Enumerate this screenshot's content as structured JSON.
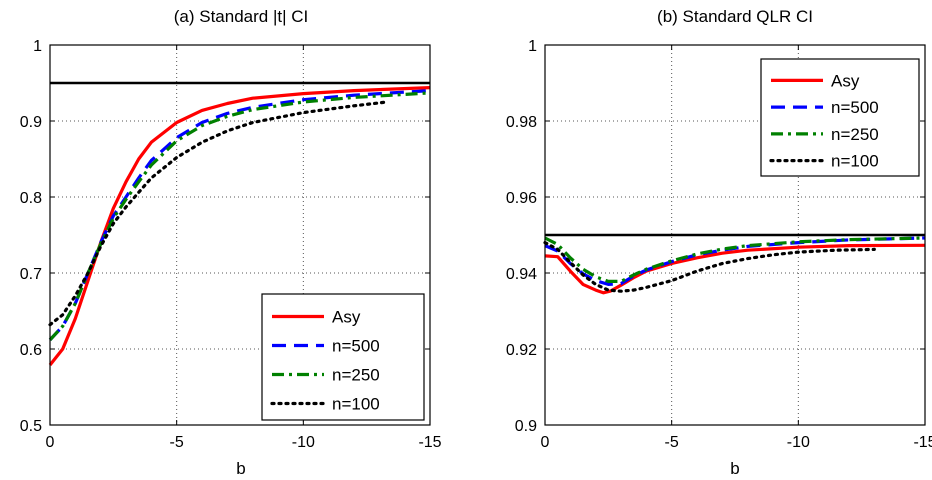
{
  "chart_data": [
    {
      "type": "line",
      "title": "(a) Standard |t| CI",
      "xlabel": "b",
      "ylabel": "",
      "xlim": [
        0,
        -15
      ],
      "ylim": [
        0.5,
        1
      ],
      "xticks": [
        0,
        -5,
        -10,
        -15
      ],
      "xtick_labels": [
        "0",
        "-5",
        "-10",
        "-15"
      ],
      "yticks": [
        0.5,
        0.6,
        0.7,
        0.8,
        0.9,
        1
      ],
      "ytick_labels": [
        "0.5",
        "0.6",
        "0.7",
        "0.8",
        "0.9",
        "1"
      ],
      "grid": true,
      "legend_position": "bottom-right",
      "reference_line": 0.95,
      "series": [
        {
          "name": "Asy",
          "color": "#ff0000",
          "style": "solid",
          "x": [
            0,
            -0.5,
            -1,
            -1.5,
            -2,
            -2.5,
            -3,
            -3.5,
            -4,
            -5,
            -6,
            -7,
            -8,
            -10,
            -12,
            -15
          ],
          "y": [
            0.579,
            0.6,
            0.64,
            0.69,
            0.74,
            0.785,
            0.82,
            0.85,
            0.872,
            0.898,
            0.914,
            0.923,
            0.93,
            0.936,
            0.94,
            0.944
          ]
        },
        {
          "name": "n=500",
          "color": "#0000ff",
          "style": "dash",
          "x": [
            0,
            -0.5,
            -1,
            -1.5,
            -2,
            -2.5,
            -3,
            -3.5,
            -4,
            -5,
            -6,
            -7,
            -8,
            -10,
            -12,
            -15
          ],
          "y": [
            0.612,
            0.63,
            0.66,
            0.7,
            0.74,
            0.775,
            0.8,
            0.825,
            0.848,
            0.878,
            0.898,
            0.91,
            0.918,
            0.928,
            0.934,
            0.94
          ]
        },
        {
          "name": "n=250",
          "color": "#008000",
          "style": "dashdot",
          "x": [
            0,
            -0.5,
            -1,
            -1.5,
            -2,
            -2.5,
            -3,
            -3.5,
            -4,
            -5,
            -6,
            -7,
            -8,
            -10,
            -12,
            -15
          ],
          "y": [
            0.612,
            0.63,
            0.66,
            0.7,
            0.738,
            0.772,
            0.797,
            0.82,
            0.842,
            0.874,
            0.894,
            0.906,
            0.915,
            0.925,
            0.931,
            0.937
          ]
        },
        {
          "name": "n=100",
          "color": "#000000",
          "style": "dot",
          "x": [
            0,
            -0.5,
            -1,
            -1.5,
            -2,
            -2.5,
            -3,
            -3.5,
            -4,
            -5,
            -6,
            -7,
            -8,
            -10,
            -12,
            -13.3
          ],
          "y": [
            0.632,
            0.645,
            0.67,
            0.7,
            0.735,
            0.765,
            0.787,
            0.806,
            0.825,
            0.852,
            0.872,
            0.887,
            0.898,
            0.911,
            0.92,
            0.925
          ]
        }
      ]
    },
    {
      "type": "line",
      "title": "(b) Standard QLR CI",
      "xlabel": "b",
      "ylabel": "",
      "xlim": [
        0,
        -15
      ],
      "ylim": [
        0.9,
        1
      ],
      "xticks": [
        0,
        -5,
        -10,
        -15
      ],
      "xtick_labels": [
        "0",
        "-5",
        "-10",
        "-15"
      ],
      "yticks": [
        0.9,
        0.92,
        0.94,
        0.96,
        0.98,
        1
      ],
      "ytick_labels": [
        "0.9",
        "0.92",
        "0.94",
        "0.96",
        "0.98",
        "1"
      ],
      "grid": true,
      "legend_position": "top-right",
      "reference_line": 0.95,
      "series": [
        {
          "name": "Asy",
          "color": "#ff0000",
          "style": "solid",
          "x": [
            0,
            -0.5,
            -1,
            -1.5,
            -2,
            -2.3,
            -2.6,
            -3,
            -3.5,
            -4,
            -5,
            -6,
            -7,
            -8,
            -10,
            -12,
            -15
          ],
          "y": [
            0.9445,
            0.9443,
            0.9405,
            0.937,
            0.9355,
            0.9348,
            0.9353,
            0.9368,
            0.9388,
            0.9405,
            0.9425,
            0.944,
            0.9452,
            0.946,
            0.9468,
            0.9472,
            0.9473
          ]
        },
        {
          "name": "n=500",
          "color": "#0000ff",
          "style": "dash",
          "x": [
            0,
            -0.5,
            -1,
            -1.5,
            -2,
            -2.5,
            -3,
            -3.5,
            -4,
            -5,
            -6,
            -7,
            -8,
            -10,
            -12,
            -15
          ],
          "y": [
            0.9472,
            0.9458,
            0.9425,
            0.9398,
            0.938,
            0.937,
            0.9372,
            0.9392,
            0.9408,
            0.943,
            0.9448,
            0.946,
            0.947,
            0.948,
            0.9487,
            0.9492
          ]
        },
        {
          "name": "n=250",
          "color": "#008000",
          "style": "dashdot",
          "x": [
            0,
            -0.5,
            -1,
            -1.5,
            -2,
            -2.5,
            -3,
            -3.5,
            -4,
            -5,
            -6,
            -7,
            -8,
            -10,
            -12,
            -15
          ],
          "y": [
            0.9492,
            0.9475,
            0.944,
            0.941,
            0.939,
            0.9378,
            0.9378,
            0.9395,
            0.941,
            0.9432,
            0.945,
            0.9463,
            0.9472,
            0.9482,
            0.9488,
            0.9492
          ]
        },
        {
          "name": "n=100",
          "color": "#000000",
          "style": "dot",
          "x": [
            0,
            -0.5,
            -1,
            -1.5,
            -2,
            -2.5,
            -3,
            -3.5,
            -4,
            -5,
            -6,
            -7,
            -8,
            -9,
            -10,
            -11.5,
            -13
          ],
          "y": [
            0.948,
            0.9462,
            0.9428,
            0.9395,
            0.937,
            0.9355,
            0.9352,
            0.9355,
            0.9362,
            0.938,
            0.9405,
            0.9425,
            0.9438,
            0.9448,
            0.9455,
            0.946,
            0.9462
          ]
        }
      ]
    }
  ]
}
